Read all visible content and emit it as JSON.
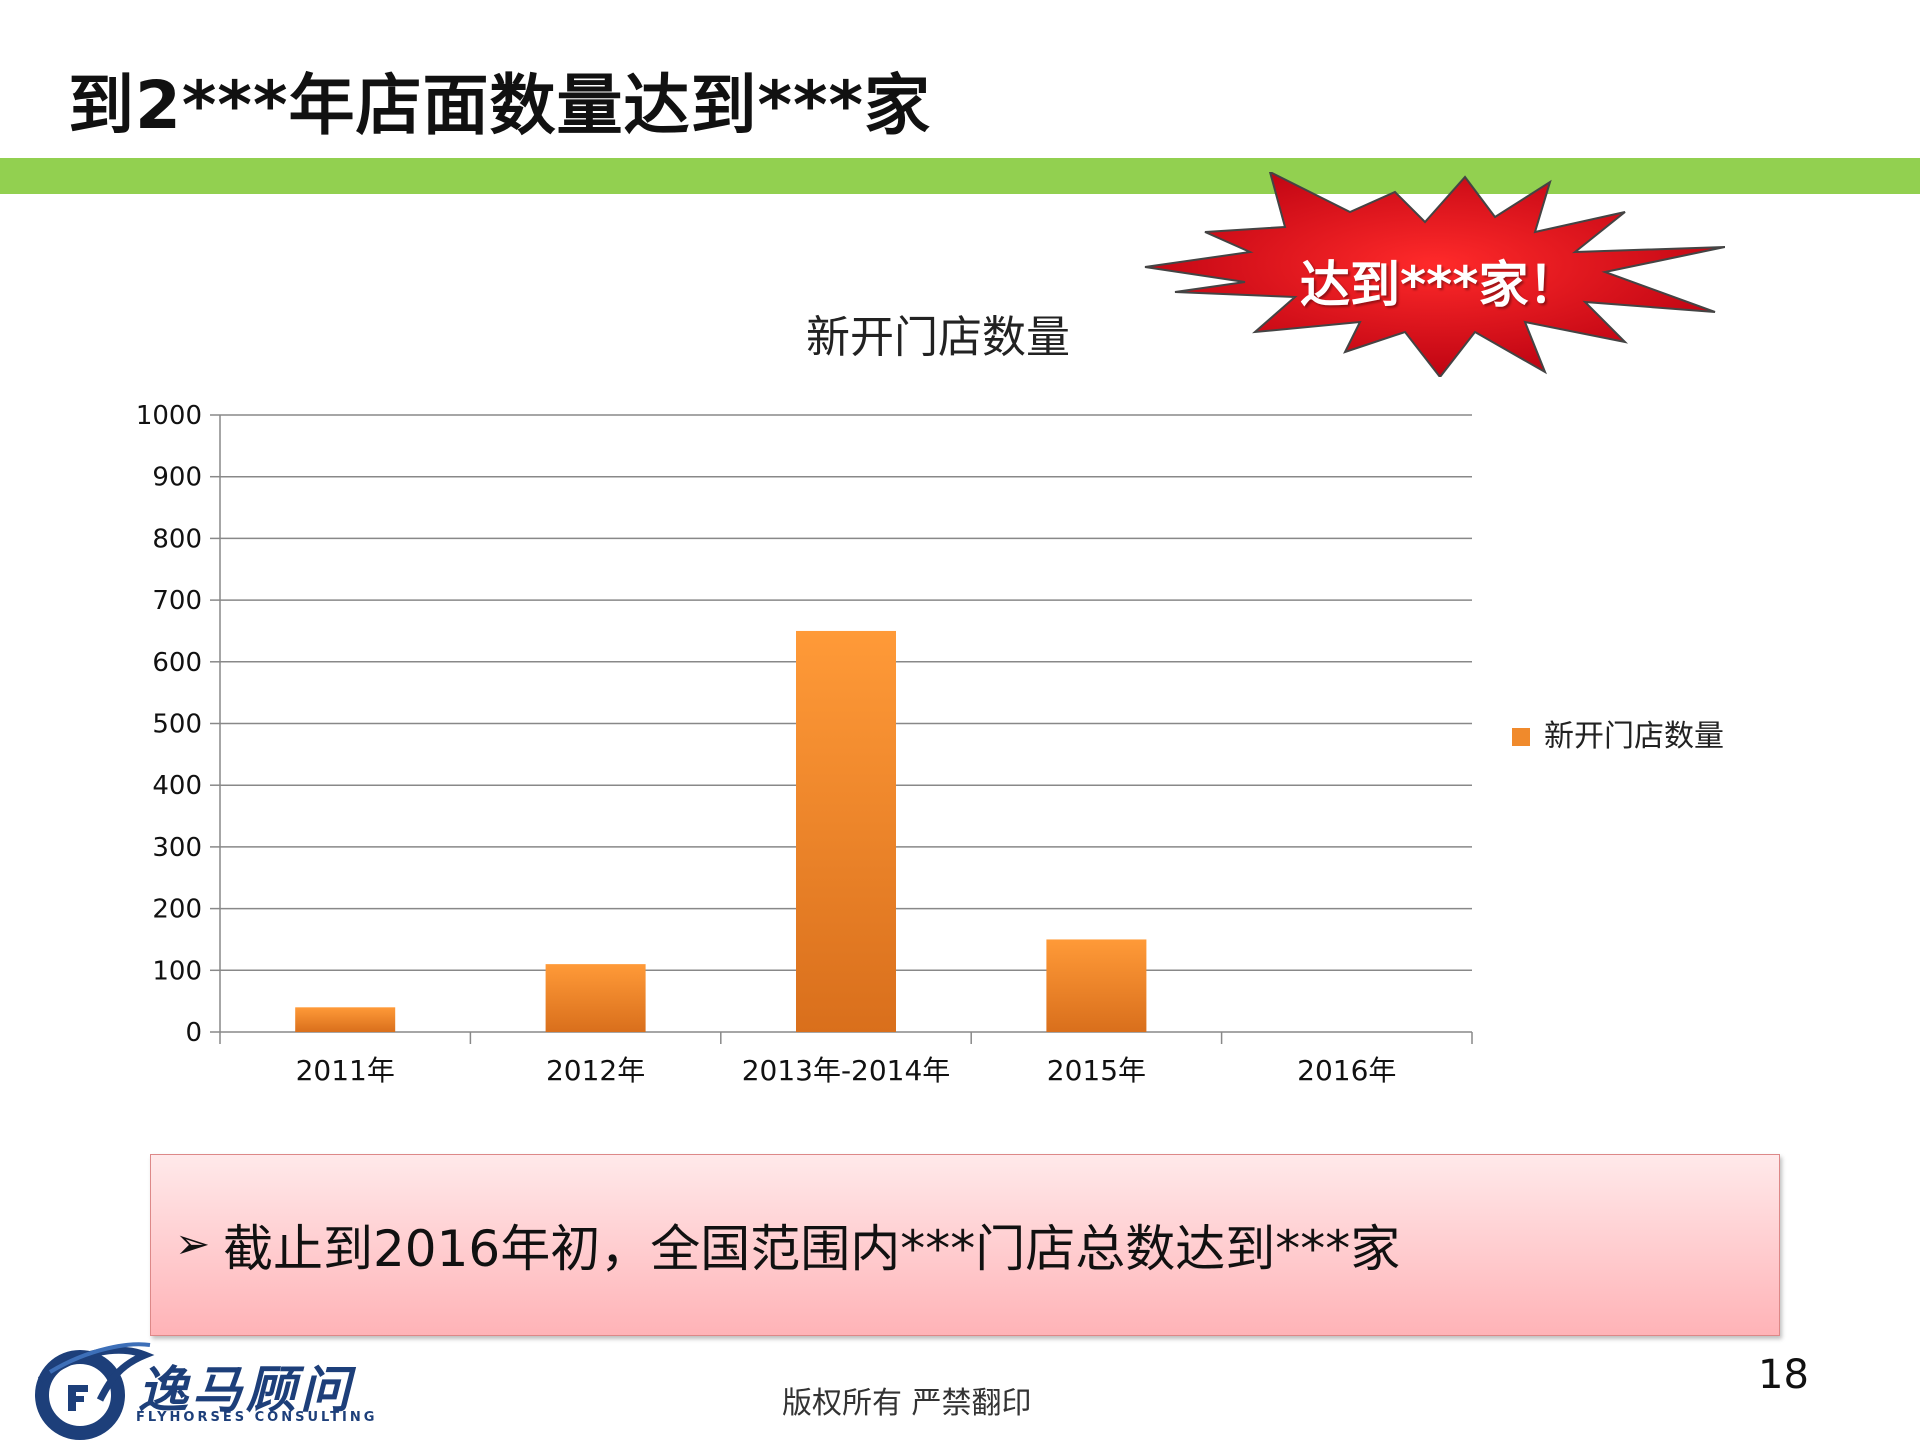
{
  "slide": {
    "title": "到2***年店面数量达到***家",
    "burst_text": "达到***家！",
    "note_arrow": "➢",
    "note_text": "截止到2016年初，全国范围内***门店总数达到***家",
    "logo_name": "逸马顾问",
    "logo_sub": "FLYHORSES CONSULTING",
    "footer": "版权所有  严禁翻印",
    "page_number": "18",
    "colors": {
      "green_bar": "#92d050",
      "bar_fill": "#f08a2c",
      "burst_fill": "#e0141c",
      "note_box": "#ffc7ca"
    }
  },
  "chart_data": {
    "type": "bar",
    "title": "新开门店数量",
    "categories": [
      "2011年",
      "2012年",
      "2013年-2014年",
      "2015年",
      "2016年"
    ],
    "series": [
      {
        "name": "新开门店数量",
        "values": [
          40,
          110,
          650,
          150,
          0
        ]
      }
    ],
    "yticks": [
      "0",
      "100",
      "200",
      "300",
      "400",
      "500",
      "600",
      "700",
      "800",
      "900",
      "1000"
    ],
    "ylim": [
      0,
      1000
    ],
    "xlabel": "",
    "ylabel": "",
    "grid": true,
    "legend": "right"
  }
}
